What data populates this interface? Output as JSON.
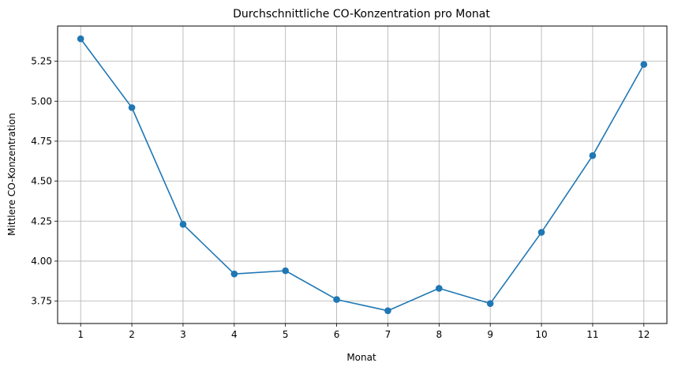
{
  "chart_data": {
    "type": "line",
    "title": "Durchschnittliche CO-Konzentration pro Monat",
    "xlabel": "Monat",
    "ylabel": "Mittlere CO-Konzentration",
    "x": [
      1,
      2,
      3,
      4,
      5,
      6,
      7,
      8,
      9,
      10,
      11,
      12
    ],
    "x_tick_labels": [
      "1",
      "2",
      "3",
      "4",
      "5",
      "6",
      "7",
      "8",
      "9",
      "10",
      "11",
      "12"
    ],
    "series": [
      {
        "values": [
          5.39,
          4.96,
          4.23,
          3.92,
          3.94,
          3.76,
          3.69,
          3.83,
          3.735,
          4.18,
          4.66,
          5.23
        ],
        "color": "#1f77b4",
        "marker": "circle"
      }
    ],
    "xlim": [
      0.55,
      12.45
    ],
    "ylim": [
      3.61,
      5.47
    ],
    "y_ticks": [
      3.75,
      4.0,
      4.25,
      4.5,
      4.75,
      5.0,
      5.25
    ],
    "y_tick_labels": [
      "3.75",
      "4.00",
      "4.25",
      "4.50",
      "4.75",
      "5.00",
      "5.25"
    ],
    "grid": true,
    "colors": {
      "grid": "#b0b0b0",
      "axes": "#000000",
      "line": "#1f77b4"
    }
  }
}
